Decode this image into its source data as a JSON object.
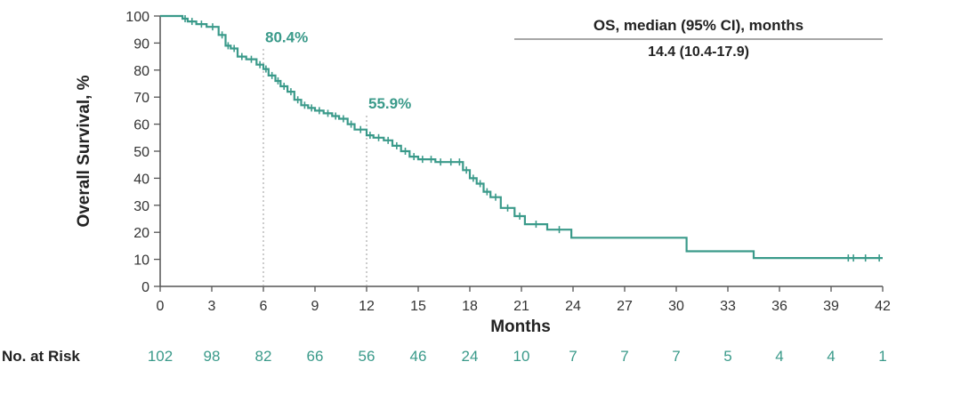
{
  "chart_data": {
    "type": "line",
    "subtype": "kaplan-meier",
    "xlabel": "Months",
    "ylabel": "Overall Survival, %",
    "xlim": [
      0,
      42
    ],
    "ylim": [
      0,
      100
    ],
    "x_ticks": [
      0,
      3,
      6,
      9,
      12,
      15,
      18,
      21,
      24,
      27,
      30,
      33,
      36,
      39,
      42
    ],
    "y_ticks": [
      0,
      10,
      20,
      30,
      40,
      50,
      60,
      70,
      80,
      90,
      100
    ],
    "grid": false,
    "line_color": "#3a9a8a",
    "series": [
      {
        "x": [
          0,
          1.3,
          1.6,
          2.1,
          2.7,
          3.4,
          3.8,
          4.1,
          4.5,
          5.0,
          5.6,
          6.0,
          6.3,
          6.7,
          7.0,
          7.4,
          7.8,
          8.2,
          8.6,
          9.0,
          9.5,
          10.0,
          10.4,
          10.9,
          11.3,
          12.0,
          12.4,
          13.0,
          13.5,
          14.0,
          14.5,
          15.0,
          15.5,
          16.0,
          16.6,
          17.2,
          17.6,
          18.0,
          18.4,
          18.8,
          19.2,
          19.8,
          20.6,
          21.2,
          22.5,
          23.9,
          30.6,
          34.5,
          42.0
        ],
        "y": [
          100,
          99,
          98,
          97,
          96,
          93,
          89,
          88,
          85,
          84,
          82,
          80.4,
          78,
          76,
          74,
          72,
          69,
          67,
          66,
          65,
          64,
          63,
          62,
          60,
          58,
          55.9,
          55,
          54,
          52,
          50,
          48,
          47,
          47,
          46,
          46,
          46,
          43,
          40,
          38,
          35,
          33,
          29,
          26,
          23,
          21,
          18,
          13,
          10.5,
          10.5
        ]
      }
    ],
    "landmarks": [
      {
        "x": 6,
        "y": 80.4,
        "label": "80.4%"
      },
      {
        "x": 12,
        "y": 55.9,
        "label": "55.9%"
      }
    ],
    "legend": {
      "position": "top-right",
      "title": "OS, median (95% CI), months",
      "value": "14.4 (10.4-17.9)"
    },
    "risk_table": {
      "label": "No. at Risk",
      "values": [
        "102",
        "98",
        "82",
        "66",
        "56",
        "46",
        "24",
        "10",
        "7",
        "7",
        "7",
        "5",
        "4",
        "4",
        "1"
      ]
    }
  }
}
